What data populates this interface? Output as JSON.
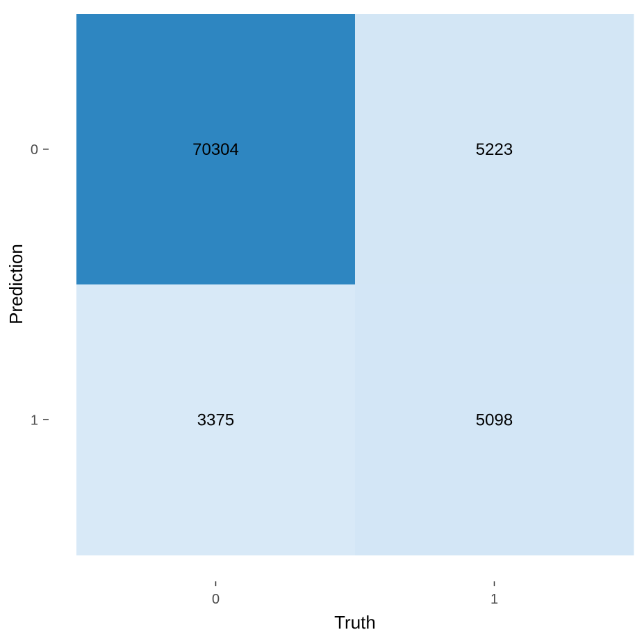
{
  "chart_data": {
    "type": "heatmap",
    "xlabel": "Truth",
    "ylabel": "Prediction",
    "x_categories": [
      "0",
      "1"
    ],
    "y_categories": [
      "0",
      "1"
    ],
    "cells": [
      {
        "truth": "0",
        "prediction": "0",
        "value": 70304,
        "label": "70304",
        "color": "#2e86c1"
      },
      {
        "truth": "1",
        "prediction": "0",
        "value": 5223,
        "label": "5223",
        "color": "#d3e6f5"
      },
      {
        "truth": "0",
        "prediction": "1",
        "value": 3375,
        "label": "3375",
        "color": "#d8e9f7"
      },
      {
        "truth": "1",
        "prediction": "1",
        "value": 5098,
        "label": "5098",
        "color": "#d3e6f6"
      }
    ],
    "grid": false,
    "legend": "none"
  }
}
